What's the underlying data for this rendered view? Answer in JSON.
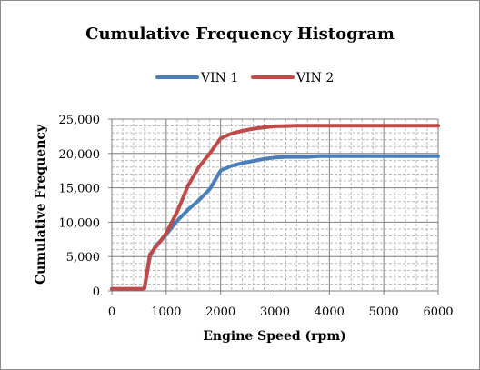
{
  "chart_data": {
    "type": "line",
    "title": "Cumulative Frequency Histogram",
    "xlabel": "Engine Speed (rpm)",
    "ylabel": "Cumulative Frequency",
    "xlim": [
      0,
      6000
    ],
    "ylim": [
      0,
      25000
    ],
    "x_major_ticks": [
      0,
      1000,
      2000,
      3000,
      4000,
      5000,
      6000
    ],
    "x_tick_labels": [
      "0",
      "1000",
      "2000",
      "3000",
      "4000",
      "5000",
      "6000"
    ],
    "y_major_ticks": [
      0,
      5000,
      10000,
      15000,
      20000,
      25000
    ],
    "y_tick_labels": [
      "0",
      "5,000",
      "10,000",
      "15,000",
      "20,000",
      "25,000"
    ],
    "x_minor_step": 200,
    "y_minor_step": 1000,
    "grid": true,
    "legend_position": "top-center",
    "series": [
      {
        "name": "VIN 1",
        "color": "#4a7ebb",
        "x": [
          0,
          200,
          400,
          560,
          600,
          700,
          800,
          900,
          1000,
          1200,
          1400,
          1600,
          1800,
          2000,
          2200,
          2400,
          2600,
          2800,
          3000,
          3200,
          3400,
          3600,
          3800,
          4000,
          4500,
          5000,
          5500,
          6000
        ],
        "y": [
          300,
          300,
          300,
          300,
          400,
          5000,
          6500,
          7300,
          8200,
          10200,
          11800,
          13200,
          14800,
          17500,
          18200,
          18600,
          18900,
          19200,
          19400,
          19500,
          19500,
          19500,
          19600,
          19600,
          19600,
          19600,
          19600,
          19600
        ]
      },
      {
        "name": "VIN 2",
        "color": "#be4b48",
        "x": [
          0,
          200,
          400,
          560,
          600,
          700,
          800,
          900,
          1000,
          1200,
          1400,
          1600,
          1800,
          2000,
          2200,
          2400,
          2600,
          2800,
          3000,
          3200,
          3400,
          3600,
          3800,
          4000,
          4500,
          5000,
          5500,
          6000
        ],
        "y": [
          300,
          300,
          300,
          300,
          400,
          5300,
          6300,
          7300,
          8400,
          11500,
          15300,
          18000,
          20000,
          22200,
          22900,
          23300,
          23600,
          23800,
          23950,
          24000,
          24050,
          24050,
          24050,
          24050,
          24050,
          24050,
          24050,
          24050
        ]
      }
    ]
  }
}
